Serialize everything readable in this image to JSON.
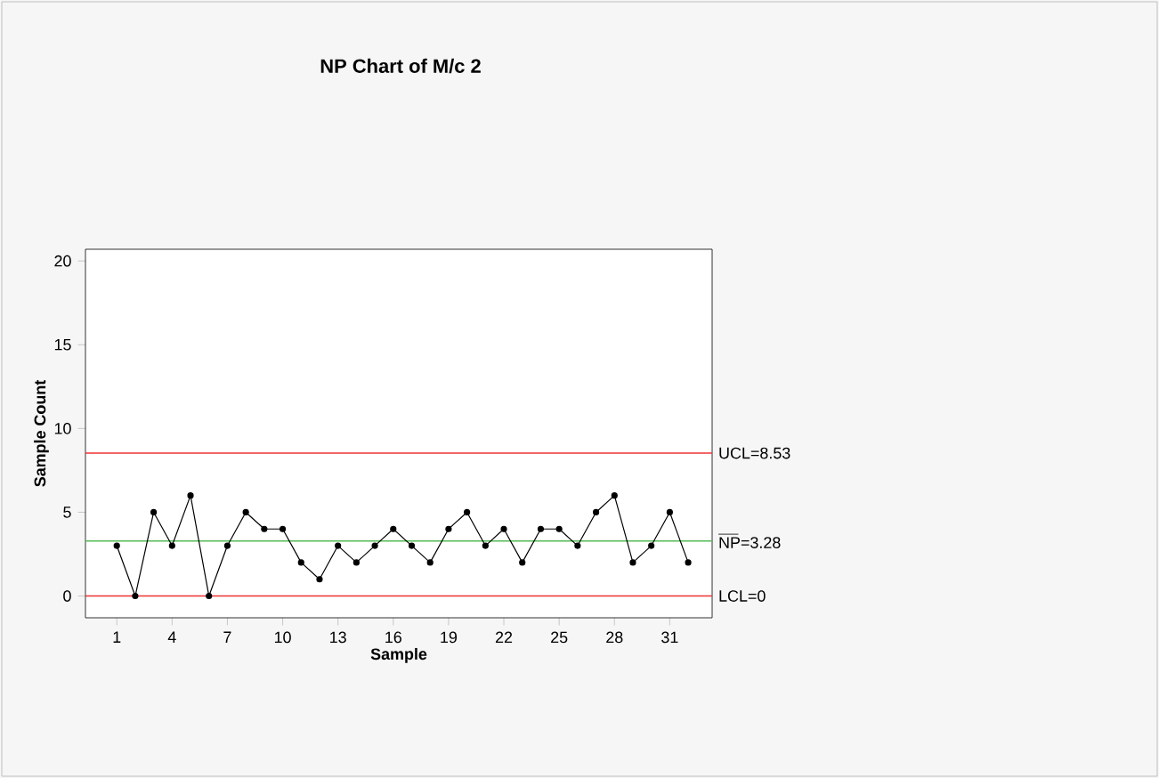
{
  "chart_data": {
    "type": "line",
    "title": "NP Chart of M/c 2",
    "xlabel": "Sample",
    "ylabel": "Sample Count",
    "x": [
      1,
      2,
      3,
      4,
      5,
      6,
      7,
      8,
      9,
      10,
      11,
      12,
      13,
      14,
      15,
      16,
      17,
      18,
      19,
      20,
      21,
      22,
      23,
      24,
      25,
      26,
      27,
      28,
      29,
      30,
      31,
      32
    ],
    "series": [
      {
        "color": "#000000",
        "values": [
          3,
          0,
          5,
          3,
          6,
          0,
          3,
          5,
          4,
          4,
          2,
          1,
          3,
          2,
          3,
          4,
          3,
          2,
          4,
          5,
          3,
          4,
          2,
          4,
          4,
          3,
          5,
          6,
          2,
          3,
          5,
          2
        ]
      }
    ],
    "marker": "circle",
    "line_style": "solid",
    "xlim": [
      -0.7,
      33.3
    ],
    "xticks": [
      1,
      4,
      7,
      10,
      13,
      16,
      19,
      22,
      25,
      28,
      31
    ],
    "ylim": [
      -1.3,
      20.7
    ],
    "yticks": [
      0,
      5,
      10,
      15,
      20
    ],
    "grid": false,
    "ref_lines": [
      {
        "axis": "y",
        "value": 8.53,
        "label": "UCL=8.53",
        "color": "#ee3333"
      },
      {
        "axis": "y",
        "value": 3.28,
        "label": "NP=3.28",
        "color": "#55bb55"
      },
      {
        "axis": "y",
        "value": 0,
        "label": "LCL=0",
        "color": "#ee3333"
      }
    ]
  }
}
